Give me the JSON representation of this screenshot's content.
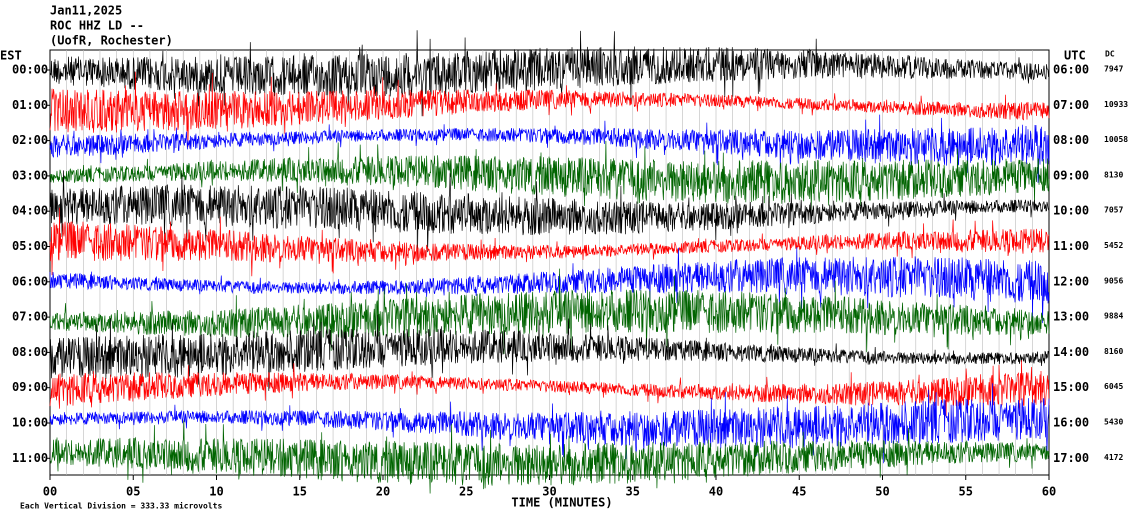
{
  "header": {
    "date": "Jan11,2025",
    "station": "ROC HHZ LD --",
    "location": "(UofR, Rochester)"
  },
  "left_zone": "EST",
  "right_zone": "UTC",
  "dc_label": "DC",
  "rows": [
    {
      "est": "00:00",
      "utc": "06:00",
      "dc": 7947,
      "color": "#000000"
    },
    {
      "est": "01:00",
      "utc": "07:00",
      "dc": 10933,
      "color": "#ff0000"
    },
    {
      "est": "02:00",
      "utc": "08:00",
      "dc": 10058,
      "color": "#0000ff"
    },
    {
      "est": "03:00",
      "utc": "09:00",
      "dc": 8130,
      "color": "#006400"
    },
    {
      "est": "04:00",
      "utc": "10:00",
      "dc": 7057,
      "color": "#000000"
    },
    {
      "est": "05:00",
      "utc": "11:00",
      "dc": 5452,
      "color": "#ff0000"
    },
    {
      "est": "06:00",
      "utc": "12:00",
      "dc": 9056,
      "color": "#0000ff"
    },
    {
      "est": "07:00",
      "utc": "13:00",
      "dc": 9884,
      "color": "#006400"
    },
    {
      "est": "08:00",
      "utc": "14:00",
      "dc": 8160,
      "color": "#000000"
    },
    {
      "est": "09:00",
      "utc": "15:00",
      "dc": 6045,
      "color": "#ff0000"
    },
    {
      "est": "10:00",
      "utc": "16:00",
      "dc": 5430,
      "color": "#0000ff"
    },
    {
      "est": "11:00",
      "utc": "17:00",
      "dc": 4172,
      "color": "#006400"
    }
  ],
  "x_ticks": [
    "00",
    "05",
    "10",
    "15",
    "20",
    "25",
    "30",
    "35",
    "40",
    "45",
    "50",
    "55",
    "60"
  ],
  "x_label": "TIME (MINUTES)",
  "footnote": "Each Vertical Division =  333.33 microvolts"
}
